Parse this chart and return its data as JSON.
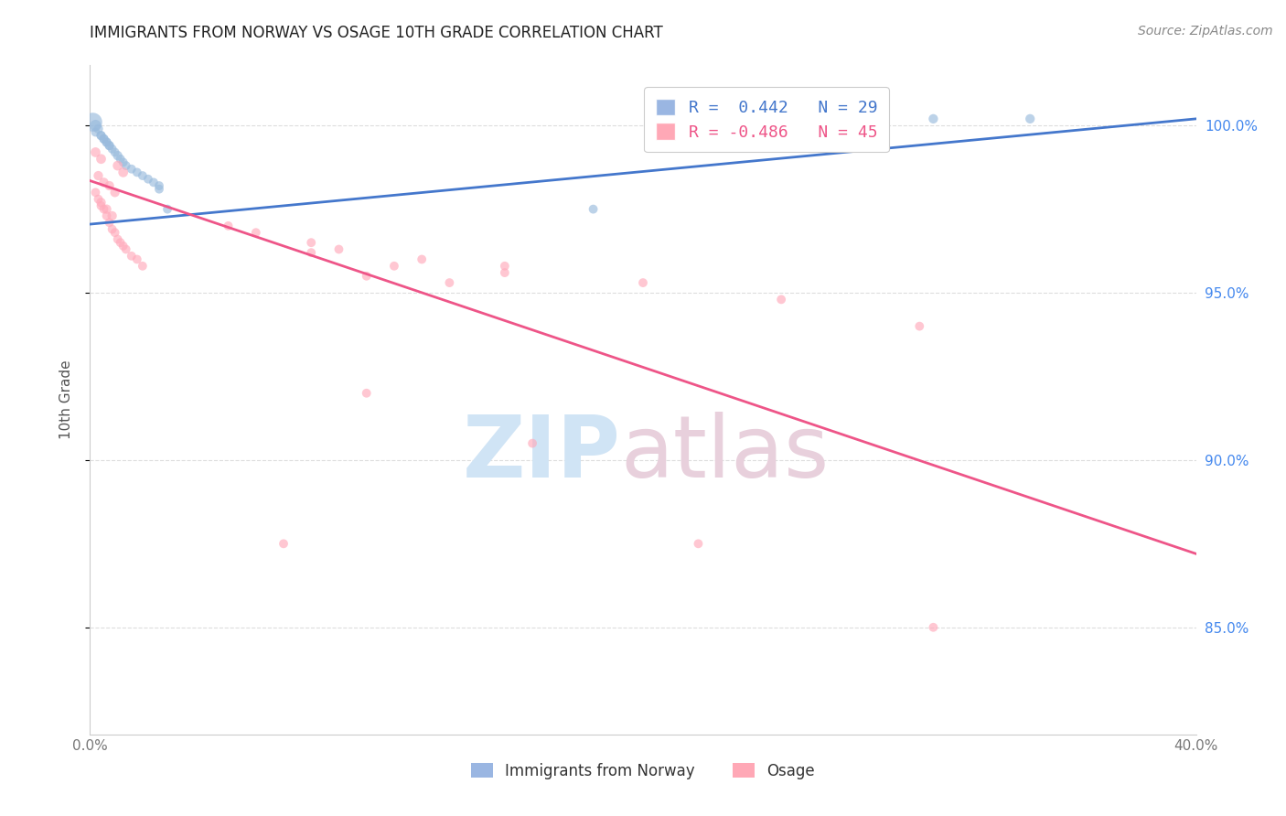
{
  "title": "IMMIGRANTS FROM NORWAY VS OSAGE 10TH GRADE CORRELATION CHART",
  "source": "Source: ZipAtlas.com",
  "ylabel": "10th Grade",
  "xlim": [
    0.0,
    0.4
  ],
  "ylim": [
    0.818,
    1.018
  ],
  "yticks": [
    0.85,
    0.9,
    0.95,
    1.0
  ],
  "yticklabels": [
    "85.0%",
    "90.0%",
    "95.0%",
    "100.0%"
  ],
  "xticks": [
    0.0,
    0.05,
    0.1,
    0.15,
    0.2,
    0.25,
    0.3,
    0.35,
    0.4
  ],
  "xticklabels": [
    "0.0%",
    "",
    "",
    "",
    "",
    "",
    "",
    "",
    "40.0%"
  ],
  "legend_line1": "R =  0.442   N = 29",
  "legend_line2": "R = -0.486   N = 45",
  "blue_scatter_color": "#99BBDD",
  "pink_scatter_color": "#FFAABB",
  "blue_line_color": "#4477CC",
  "pink_line_color": "#EE5588",
  "blue_legend_color": "#88AADD",
  "pink_legend_color": "#FF99AA",
  "norway_x": [
    0.002,
    0.004,
    0.005,
    0.006,
    0.007,
    0.008,
    0.009,
    0.01,
    0.011,
    0.012,
    0.013,
    0.015,
    0.017,
    0.019,
    0.021,
    0.023,
    0.025,
    0.003,
    0.004,
    0.005,
    0.006,
    0.007,
    0.001,
    0.002,
    0.025,
    0.028,
    0.182,
    0.305,
    0.34
  ],
  "norway_y": [
    0.998,
    0.997,
    0.996,
    0.995,
    0.994,
    0.993,
    0.992,
    0.991,
    0.99,
    0.989,
    0.988,
    0.987,
    0.986,
    0.985,
    0.984,
    0.983,
    0.982,
    0.999,
    0.997,
    0.996,
    0.995,
    0.994,
    1.001,
    1.0,
    0.981,
    0.975,
    0.975,
    1.002,
    1.002
  ],
  "norway_sizes": [
    50,
    50,
    55,
    55,
    55,
    50,
    50,
    55,
    50,
    50,
    50,
    50,
    50,
    50,
    50,
    50,
    50,
    55,
    55,
    50,
    50,
    50,
    220,
    80,
    50,
    50,
    50,
    55,
    55
  ],
  "osage_x": [
    0.002,
    0.003,
    0.004,
    0.005,
    0.006,
    0.007,
    0.008,
    0.009,
    0.01,
    0.011,
    0.012,
    0.013,
    0.015,
    0.017,
    0.019,
    0.003,
    0.005,
    0.007,
    0.009,
    0.004,
    0.006,
    0.008,
    0.002,
    0.004,
    0.01,
    0.012,
    0.05,
    0.08,
    0.12,
    0.15,
    0.1,
    0.13,
    0.06,
    0.09,
    0.11,
    0.08,
    0.15,
    0.2,
    0.25,
    0.3,
    0.1,
    0.16,
    0.07,
    0.22,
    0.305
  ],
  "osage_y": [
    0.98,
    0.978,
    0.976,
    0.975,
    0.973,
    0.971,
    0.969,
    0.968,
    0.966,
    0.965,
    0.964,
    0.963,
    0.961,
    0.96,
    0.958,
    0.985,
    0.983,
    0.982,
    0.98,
    0.977,
    0.975,
    0.973,
    0.992,
    0.99,
    0.988,
    0.986,
    0.97,
    0.965,
    0.96,
    0.958,
    0.955,
    0.953,
    0.968,
    0.963,
    0.958,
    0.962,
    0.956,
    0.953,
    0.948,
    0.94,
    0.92,
    0.905,
    0.875,
    0.875,
    0.85
  ],
  "osage_sizes": [
    50,
    50,
    50,
    50,
    50,
    50,
    50,
    50,
    50,
    50,
    50,
    50,
    50,
    50,
    50,
    55,
    55,
    55,
    55,
    55,
    55,
    55,
    60,
    60,
    60,
    60,
    50,
    50,
    50,
    50,
    50,
    50,
    50,
    50,
    50,
    50,
    50,
    50,
    50,
    50,
    50,
    50,
    50,
    50,
    50
  ],
  "blue_trend_x": [
    0.0,
    0.4
  ],
  "blue_trend_y": [
    0.9705,
    1.002
  ],
  "pink_trend_x": [
    0.0,
    0.4
  ],
  "pink_trend_y": [
    0.9835,
    0.872
  ],
  "watermark_zip_color": "#D0E4F5",
  "watermark_atlas_color": "#E8D0DC",
  "grid_color": "#DDDDDD",
  "spine_color": "#CCCCCC"
}
